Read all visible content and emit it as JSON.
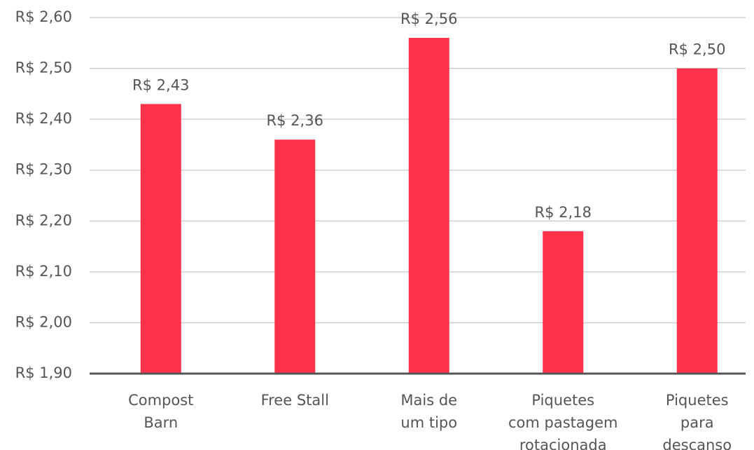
{
  "chart_data": {
    "type": "bar",
    "categories": [
      "Compost\nBarn",
      "Free Stall",
      "Mais de\num tipo",
      "Piquetes\ncom pastagem\nrotacionada",
      "Piquetes\npara\ndescanso"
    ],
    "values": [
      2.43,
      2.36,
      2.56,
      2.18,
      2.5
    ],
    "value_labels": [
      "R$ 2,43",
      "R$ 2,36",
      "R$ 2,56",
      "R$ 2,18",
      "R$ 2,50"
    ],
    "color": "#fe3349",
    "ylim": [
      1.9,
      2.6
    ],
    "yticks": [
      {
        "value": 1.9,
        "label": "R$ 1,90"
      },
      {
        "value": 2.0,
        "label": "R$ 2,00"
      },
      {
        "value": 2.1,
        "label": "R$ 2,10"
      },
      {
        "value": 2.2,
        "label": "R$ 2,20"
      },
      {
        "value": 2.3,
        "label": "R$ 2,30"
      },
      {
        "value": 2.4,
        "label": "R$ 2,40"
      },
      {
        "value": 2.5,
        "label": "R$ 2,50"
      },
      {
        "value": 2.6,
        "label": "R$ 2,60"
      }
    ],
    "grid": true
  }
}
